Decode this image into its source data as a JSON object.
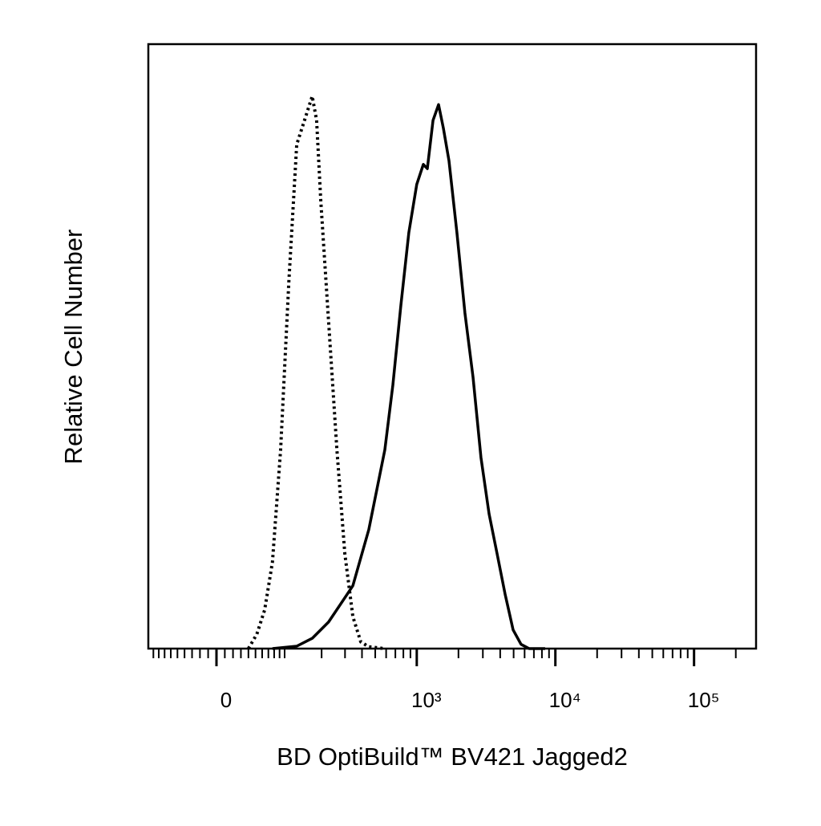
{
  "chart_data": {
    "type": "histogram-overlay",
    "x_label": "BD OptiBuild™ BV421 Jagged2",
    "y_label": "Relative Cell Number",
    "xscale": "biexponential",
    "xlim": [
      -100,
      280000
    ],
    "ylim": [
      0,
      100
    ],
    "xticks": [
      {
        "value": 0,
        "label": "0"
      },
      {
        "value": 1000,
        "label": "10³"
      },
      {
        "value": 10000,
        "label": "10⁴"
      },
      {
        "value": 100000,
        "label": "10⁵"
      }
    ],
    "xminorticks": [
      -90,
      -80,
      -70,
      -60,
      -50,
      -40,
      -30,
      -20,
      -10,
      10,
      20,
      30,
      40,
      50,
      60,
      70,
      80,
      90,
      100,
      200,
      300,
      400,
      500,
      600,
      700,
      800,
      900,
      2000,
      3000,
      4000,
      5000,
      6000,
      7000,
      8000,
      9000,
      20000,
      30000,
      40000,
      50000,
      60000,
      70000,
      80000,
      90000,
      200000
    ],
    "series": [
      {
        "color": "#000000",
        "style": "dotted",
        "x": [
          40,
          52,
          64,
          77,
          92,
          109,
          127,
          147,
          169,
          183,
          197,
          226,
          261,
          299,
          343,
          392,
          449,
          587
        ],
        "values": [
          0,
          2.4,
          6.4,
          14.3,
          32.9,
          60.8,
          83.4,
          87.4,
          91.4,
          87.4,
          74.1,
          54.2,
          32.9,
          15.7,
          5.3,
          1.1,
          0.3,
          0
        ]
      },
      {
        "color": "#000000",
        "style": "solid",
        "x": [
          77,
          127,
          169,
          226,
          299,
          343,
          449,
          587,
          671,
          767,
          876,
          1000,
          1115,
          1192,
          1310,
          1438,
          1557,
          1709,
          1951,
          2229,
          2547,
          2909,
          3324,
          3800,
          4340,
          4960,
          5661,
          6468,
          8440
        ],
        "values": [
          0,
          0.4,
          1.7,
          4.4,
          8.4,
          10.4,
          19.7,
          32.9,
          43.6,
          56.8,
          68.8,
          76.8,
          80.1,
          79.4,
          87.4,
          90.0,
          86.1,
          80.7,
          68.8,
          55.5,
          44.9,
          31.6,
          22.3,
          15.7,
          9.0,
          3.1,
          0.7,
          0,
          0
        ]
      }
    ]
  }
}
